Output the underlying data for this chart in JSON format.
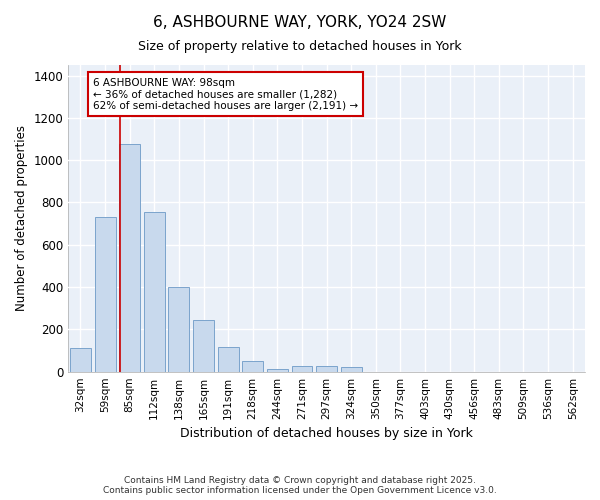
{
  "title": "6, ASHBOURNE WAY, YORK, YO24 2SW",
  "subtitle": "Size of property relative to detached houses in York",
  "xlabel": "Distribution of detached houses by size in York",
  "ylabel": "Number of detached properties",
  "bar_color": "#c8d9ed",
  "bar_edge_color": "#7ba3cc",
  "background_color": "#ffffff",
  "plot_bg_color": "#eaf0f8",
  "grid_color": "#ffffff",
  "categories": [
    "32sqm",
    "59sqm",
    "85sqm",
    "112sqm",
    "138sqm",
    "165sqm",
    "191sqm",
    "218sqm",
    "244sqm",
    "271sqm",
    "297sqm",
    "324sqm",
    "350sqm",
    "377sqm",
    "403sqm",
    "430sqm",
    "456sqm",
    "483sqm",
    "509sqm",
    "536sqm",
    "562sqm"
  ],
  "values": [
    110,
    730,
    1075,
    755,
    400,
    245,
    115,
    50,
    15,
    25,
    25,
    20,
    0,
    0,
    0,
    0,
    0,
    0,
    0,
    0,
    0
  ],
  "ylim": [
    0,
    1450
  ],
  "yticks": [
    0,
    200,
    400,
    600,
    800,
    1000,
    1200,
    1400
  ],
  "red_line_bin": 2,
  "annotation_title": "6 ASHBOURNE WAY: 98sqm",
  "annotation_line1": "← 36% of detached houses are smaller (1,282)",
  "annotation_line2": "62% of semi-detached houses are larger (2,191) →",
  "annotation_box_color": "#ffffff",
  "annotation_border_color": "#cc0000",
  "footnote1": "Contains HM Land Registry data © Crown copyright and database right 2025.",
  "footnote2": "Contains public sector information licensed under the Open Government Licence v3.0."
}
